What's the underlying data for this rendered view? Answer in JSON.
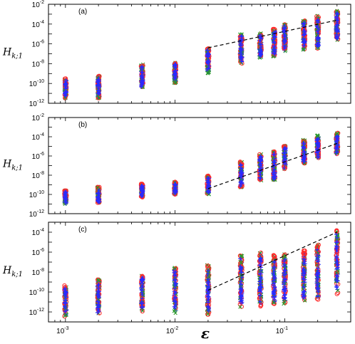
{
  "chart_data": {
    "type": "scatter",
    "xlabel": "ε",
    "xscale": "log",
    "xlim": [
      0.0007,
      0.4
    ],
    "x_ticks": [
      {
        "value": 0.001,
        "base": "10",
        "exp": "-3"
      },
      {
        "value": 0.01,
        "base": "10",
        "exp": "-2"
      },
      {
        "value": 0.1,
        "base": "10",
        "exp": "-1"
      }
    ],
    "markers": [
      {
        "symbol": "circle",
        "color": "#ff2a2a"
      },
      {
        "symbol": "cross",
        "color": "#2a9a2a"
      },
      {
        "symbol": "plus",
        "color": "#2a2aff"
      }
    ],
    "epsilon_values": [
      0.001,
      0.002,
      0.005,
      0.01,
      0.02,
      0.04,
      0.06,
      0.08,
      0.1,
      0.15,
      0.2,
      0.3
    ],
    "panels": [
      {
        "label": "(a)",
        "ylabel_main": "H",
        "ylabel_sub": "k;1",
        "yscale": "log",
        "ylim_exp": [
          -12,
          -2
        ],
        "y_ticks": [
          {
            "base": "10",
            "exp": "-12"
          },
          {
            "base": "10",
            "exp": "-10"
          },
          {
            "base": "10",
            "exp": "-8"
          },
          {
            "base": "10",
            "exp": "-6"
          },
          {
            "base": "10",
            "exp": "-4"
          },
          {
            "base": "10",
            "exp": "-2"
          }
        ],
        "fit_line": {
          "x": [
            0.02,
            0.3
          ],
          "y": [
            4e-07,
            0.00025
          ]
        },
        "columns_log10_range": [
          [
            -11.5,
            -9.5
          ],
          [
            -11.5,
            -9.2
          ],
          [
            -10.5,
            -8.0
          ],
          [
            -10.0,
            -7.8
          ],
          [
            -9.0,
            -6.4
          ],
          [
            -8.0,
            -5.0
          ],
          [
            -7.5,
            -4.9
          ],
          [
            -7.3,
            -4.5
          ],
          [
            -6.8,
            -4.0
          ],
          [
            -6.7,
            -3.6
          ],
          [
            -6.5,
            -3.1
          ],
          [
            -5.8,
            -2.5
          ]
        ]
      },
      {
        "label": "(b)",
        "ylabel_main": "H",
        "ylabel_sub": "k;1",
        "yscale": "log",
        "ylim_exp": [
          -12,
          -2
        ],
        "y_ticks": [
          {
            "base": "10",
            "exp": "-12"
          },
          {
            "base": "10",
            "exp": "-10"
          },
          {
            "base": "10",
            "exp": "-8"
          },
          {
            "base": "10",
            "exp": "-6"
          },
          {
            "base": "10",
            "exp": "-4"
          },
          {
            "base": "10",
            "exp": "-2"
          }
        ],
        "fit_line": {
          "x": [
            0.02,
            0.3
          ],
          "y": [
            4e-10,
            2e-05
          ]
        },
        "columns_log10_range": [
          [
            -11.0,
            -9.6
          ],
          [
            -11.0,
            -9.2
          ],
          [
            -10.3,
            -8.9
          ],
          [
            -10.0,
            -8.7
          ],
          [
            -10.0,
            -8.0
          ],
          [
            -9.3,
            -6.6
          ],
          [
            -8.6,
            -5.8
          ],
          [
            -8.7,
            -5.5
          ],
          [
            -7.4,
            -4.9
          ],
          [
            -6.8,
            -4.3
          ],
          [
            -6.3,
            -3.8
          ],
          [
            -5.9,
            -3.6
          ]
        ]
      },
      {
        "label": "(c)",
        "ylabel_main": "H",
        "ylabel_sub": "k;1",
        "yscale": "log",
        "ylim_exp": [
          -13,
          -3
        ],
        "y_ticks": [
          {
            "base": "10",
            "exp": "-12"
          },
          {
            "base": "10",
            "exp": "-10"
          },
          {
            "base": "10",
            "exp": "-8"
          },
          {
            "base": "10",
            "exp": "-6"
          },
          {
            "base": "10",
            "exp": "-4"
          }
        ],
        "fit_line": {
          "x": [
            0.02,
            0.3
          ],
          "y": [
            1.5e-10,
            0.0001
          ]
        },
        "columns_log10_range": [
          [
            -12.5,
            -9.3
          ],
          [
            -12.3,
            -8.7
          ],
          [
            -12.0,
            -8.3
          ],
          [
            -12.3,
            -7.5
          ],
          [
            -12.3,
            -7.3
          ],
          [
            -11.5,
            -6.3
          ],
          [
            -11.5,
            -6.0
          ],
          [
            -11.3,
            -6.3
          ],
          [
            -11.2,
            -6.2
          ],
          [
            -11.0,
            -5.8
          ],
          [
            -10.8,
            -5.2
          ],
          [
            -10.3,
            -3.8
          ]
        ]
      }
    ]
  }
}
